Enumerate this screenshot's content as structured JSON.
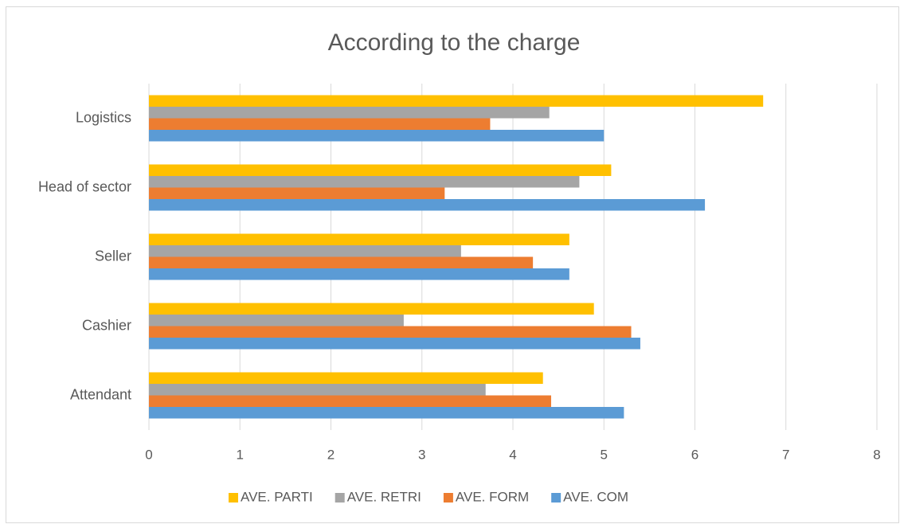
{
  "chart_data": {
    "type": "bar",
    "orientation": "horizontal",
    "title": "According to the charge",
    "categories": [
      "Attendant",
      "Cashier",
      "Seller",
      "Head of sector",
      "Logistics"
    ],
    "series": [
      {
        "name": "AVE. PARTI",
        "color": "#ffc000",
        "values": [
          4.33,
          4.89,
          4.62,
          5.08,
          6.75
        ]
      },
      {
        "name": "AVE. RETRI",
        "color": "#a5a5a5",
        "values": [
          3.7,
          2.8,
          3.43,
          4.73,
          4.4
        ]
      },
      {
        "name": "AVE. FORM",
        "color": "#ed7d31",
        "values": [
          4.42,
          5.3,
          4.22,
          3.25,
          3.75
        ]
      },
      {
        "name": "AVE. COM",
        "color": "#5b9bd5",
        "values": [
          5.22,
          5.4,
          4.62,
          6.11,
          5.0
        ]
      }
    ],
    "xlim": [
      0,
      8
    ],
    "xticks": [
      0,
      1,
      2,
      3,
      4,
      5,
      6,
      7,
      8
    ],
    "grid": true,
    "legend": "bottom"
  }
}
